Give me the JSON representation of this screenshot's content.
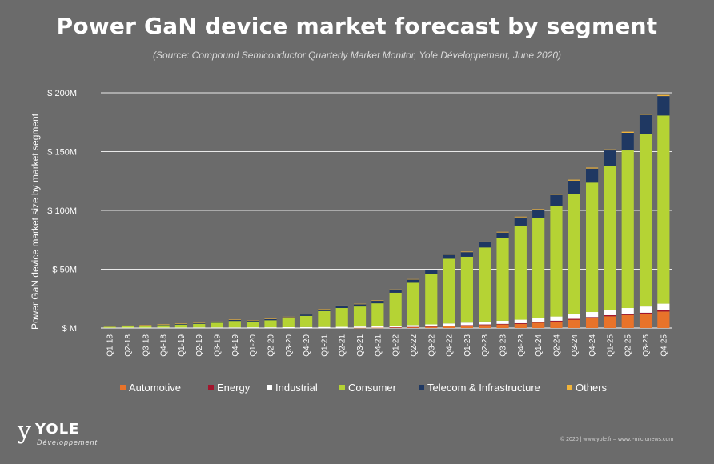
{
  "header": {
    "title": "Power GaN device market forecast by segment",
    "subtitle": "(Source: Compound Semiconductor Quarterly Market Monitor, Yole Développement, June 2020)"
  },
  "footer": {
    "logo_name": "YOLE",
    "logo_sub": "Développement",
    "credits": "© 2020 | www.yole.fr – www.i-micronews.com"
  },
  "colors": {
    "background": "#6b6b6b",
    "automotive": "#e8732a",
    "energy": "#a3142c",
    "industrial": "#ffffff",
    "consumer": "#b5d334",
    "telecom": "#1f3862",
    "others": "#f2b53a"
  },
  "chart_data": {
    "type": "bar",
    "stacked": true,
    "title": "Power GaN device market forecast by segment",
    "xlabel": "",
    "ylabel": "Power GaN device market size by market segment",
    "ylim": [
      0,
      200
    ],
    "y_ticks": [
      0,
      50,
      100,
      150,
      200
    ],
    "y_tick_labels": [
      "$ M",
      "$ 50M",
      "$ 100M",
      "$ 150M",
      "$ 200M"
    ],
    "legend_position": "bottom",
    "categories": [
      "Q1-18",
      "Q2-18",
      "Q3-18",
      "Q4-18",
      "Q1-19",
      "Q2-19",
      "Q3-19",
      "Q4-19",
      "Q1-20",
      "Q2-20",
      "Q3-20",
      "Q4-20",
      "Q1-21",
      "Q2-21",
      "Q3-21",
      "Q4-21",
      "Q1-22",
      "Q2-22",
      "Q3-22",
      "Q4-22",
      "Q1-23",
      "Q2-23",
      "Q3-23",
      "Q4-23",
      "Q1-24",
      "Q2-24",
      "Q3-24",
      "Q4-24",
      "Q1-25",
      "Q2-25",
      "Q3-25",
      "Q4-25"
    ],
    "series": [
      {
        "name": "Automotive",
        "values": [
          0,
          0,
          0,
          0,
          0,
          0,
          0,
          0,
          0,
          0,
          0,
          0,
          0,
          0,
          0.2,
          0.3,
          0.5,
          0.7,
          1,
          1.5,
          2,
          2.5,
          3,
          3.5,
          4.5,
          5.5,
          7,
          8.5,
          10,
          11,
          12,
          14
        ]
      },
      {
        "name": "Energy",
        "values": [
          0,
          0,
          0,
          0,
          0,
          0,
          0,
          0,
          0,
          0,
          0,
          0,
          0,
          0,
          0,
          0,
          0.1,
          0.2,
          0.3,
          0.4,
          0.4,
          0.5,
          0.5,
          0.6,
          0.6,
          0.7,
          0.8,
          0.8,
          0.9,
          1,
          1,
          1.2
        ]
      },
      {
        "name": "Industrial",
        "values": [
          0.2,
          0.3,
          0.3,
          0.4,
          0.4,
          0.5,
          0.5,
          0.5,
          0.6,
          0.6,
          0.7,
          0.8,
          0.9,
          1,
          1.1,
          1.2,
          1.4,
          1.6,
          1.8,
          2,
          2.2,
          2.5,
          2.7,
          3,
          3.3,
          3.6,
          4,
          4.3,
          4.6,
          5,
          5.3,
          5.5
        ]
      },
      {
        "name": "Consumer",
        "values": [
          0.8,
          1.2,
          1.5,
          2,
          2.5,
          3,
          4,
          5.5,
          5,
          6,
          7.5,
          9.5,
          13.5,
          16,
          17,
          19.5,
          28,
          36,
          43,
          55,
          56,
          63,
          70,
          80,
          85,
          94,
          102,
          110,
          122,
          134,
          147,
          160
        ]
      },
      {
        "name": "Telecom & Infrastructure",
        "values": [
          0.5,
          0.5,
          0.6,
          0.6,
          0.8,
          0.8,
          0.9,
          1,
          1,
          1.1,
          1.2,
          1.4,
          1.6,
          1.8,
          2,
          2.2,
          2.4,
          2.7,
          3,
          3.5,
          3.9,
          4.5,
          5,
          7,
          7,
          9.5,
          11.5,
          12,
          13.5,
          15,
          16,
          16.5
        ]
      },
      {
        "name": "Others",
        "values": [
          0.1,
          0.1,
          0.1,
          0.1,
          0.1,
          0.1,
          0.1,
          0.2,
          0.2,
          0.2,
          0.2,
          0.2,
          0.2,
          0.3,
          0.3,
          0.3,
          0.4,
          0.4,
          0.4,
          0.5,
          0.5,
          0.5,
          0.6,
          0.6,
          0.7,
          0.7,
          0.8,
          0.8,
          0.9,
          0.9,
          1,
          1
        ]
      }
    ]
  }
}
